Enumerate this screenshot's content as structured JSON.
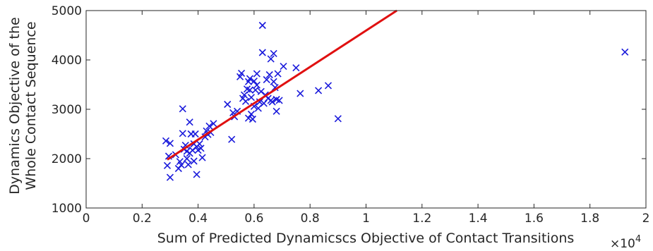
{
  "chart_data": {
    "type": "scatter",
    "xlabel": "Sum of Predicted Dynamicscs Objective of Contact Transitions",
    "x_multiplier": "×10",
    "x_multiplier_exp": "4",
    "ylabel_lines": [
      "Dynamics Objective of the",
      "Whole Contact Sequence"
    ],
    "xlim": [
      0,
      2
    ],
    "ylim": [
      1000,
      5000
    ],
    "x_ticks": [
      0,
      0.2,
      0.4,
      0.6,
      0.8,
      1,
      1.2,
      1.4,
      1.6,
      1.8,
      2
    ],
    "x_tick_labels": [
      "0",
      "0.2",
      "0.4",
      "0.6",
      "0.8",
      "1",
      "1.2",
      "1.4",
      "1.6",
      "1.8",
      "2"
    ],
    "y_ticks": [
      1000,
      2000,
      3000,
      4000,
      5000
    ],
    "y_tick_labels": [
      "1000",
      "2000",
      "3000",
      "4000",
      "5000"
    ],
    "grid": false,
    "marker": "x",
    "marker_color": "#1a1adb",
    "fit_color": "#e01010",
    "fit_line": {
      "x": [
        0.29,
        1.11
      ],
      "y": [
        1980,
        5000
      ]
    },
    "points": [
      [
        0.285,
        2360
      ],
      [
        0.3,
        2310
      ],
      [
        0.295,
        2050
      ],
      [
        0.29,
        1860
      ],
      [
        0.3,
        1620
      ],
      [
        0.32,
        2080
      ],
      [
        0.33,
        1800
      ],
      [
        0.335,
        1940
      ],
      [
        0.34,
        1870
      ],
      [
        0.345,
        2510
      ],
      [
        0.345,
        3010
      ],
      [
        0.35,
        2190
      ],
      [
        0.355,
        2270
      ],
      [
        0.36,
        2150
      ],
      [
        0.36,
        2000
      ],
      [
        0.365,
        1880
      ],
      [
        0.37,
        2110
      ],
      [
        0.37,
        2740
      ],
      [
        0.375,
        2500
      ],
      [
        0.38,
        2170
      ],
      [
        0.385,
        2300
      ],
      [
        0.385,
        1950
      ],
      [
        0.39,
        2500
      ],
      [
        0.395,
        2240
      ],
      [
        0.4,
        2170
      ],
      [
        0.395,
        1680
      ],
      [
        0.405,
        2300
      ],
      [
        0.41,
        2210
      ],
      [
        0.415,
        2020
      ],
      [
        0.425,
        2440
      ],
      [
        0.43,
        2560
      ],
      [
        0.435,
        2490
      ],
      [
        0.44,
        2660
      ],
      [
        0.445,
        2530
      ],
      [
        0.455,
        2710
      ],
      [
        0.505,
        3100
      ],
      [
        0.52,
        2390
      ],
      [
        0.525,
        2930
      ],
      [
        0.53,
        2850
      ],
      [
        0.54,
        2960
      ],
      [
        0.55,
        3660
      ],
      [
        0.555,
        3730
      ],
      [
        0.56,
        3220
      ],
      [
        0.565,
        3290
      ],
      [
        0.57,
        3160
      ],
      [
        0.575,
        3410
      ],
      [
        0.58,
        3560
      ],
      [
        0.58,
        2820
      ],
      [
        0.585,
        3390
      ],
      [
        0.585,
        3620
      ],
      [
        0.59,
        3240
      ],
      [
        0.59,
        2900
      ],
      [
        0.595,
        2800
      ],
      [
        0.6,
        3570
      ],
      [
        0.6,
        3060
      ],
      [
        0.605,
        3390
      ],
      [
        0.61,
        3490
      ],
      [
        0.61,
        3720
      ],
      [
        0.615,
        3020
      ],
      [
        0.62,
        3150
      ],
      [
        0.625,
        3360
      ],
      [
        0.63,
        4700
      ],
      [
        0.63,
        4150
      ],
      [
        0.635,
        3120
      ],
      [
        0.64,
        3290
      ],
      [
        0.645,
        3600
      ],
      [
        0.65,
        3220
      ],
      [
        0.655,
        3700
      ],
      [
        0.66,
        4020
      ],
      [
        0.66,
        3180
      ],
      [
        0.665,
        3150
      ],
      [
        0.67,
        4130
      ],
      [
        0.67,
        3560
      ],
      [
        0.675,
        3440
      ],
      [
        0.68,
        3200
      ],
      [
        0.68,
        2960
      ],
      [
        0.685,
        3720
      ],
      [
        0.69,
        3180
      ],
      [
        0.705,
        3870
      ],
      [
        0.75,
        3840
      ],
      [
        0.765,
        3320
      ],
      [
        0.83,
        3380
      ],
      [
        0.865,
        3480
      ],
      [
        0.9,
        2810
      ],
      [
        1.925,
        4160
      ]
    ]
  }
}
